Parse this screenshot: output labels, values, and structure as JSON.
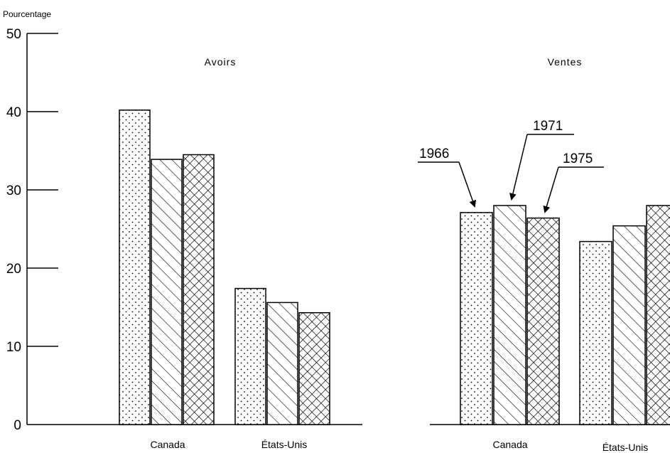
{
  "chart_data": [
    {
      "type": "bar",
      "title": "Avoirs",
      "ylabel": "Pourcentage",
      "ylim": [
        0,
        50
      ],
      "yticks": [
        0,
        10,
        20,
        30,
        40,
        50
      ],
      "categories": [
        "Canada",
        "États-Unis"
      ],
      "series": [
        {
          "name": "1966",
          "values": [
            40.2,
            17.4
          ]
        },
        {
          "name": "1971",
          "values": [
            33.9,
            15.6
          ]
        },
        {
          "name": "1975",
          "values": [
            34.5,
            14.3
          ]
        }
      ],
      "grid": false
    },
    {
      "type": "bar",
      "title": "Ventes",
      "ylim": [
        0,
        50
      ],
      "categories": [
        "Canada",
        "États-Unis"
      ],
      "series": [
        {
          "name": "1966",
          "values": [
            27.1,
            23.4
          ]
        },
        {
          "name": "1971",
          "values": [
            28.0,
            25.4
          ]
        },
        {
          "name": "1975",
          "values": [
            26.4,
            28.0
          ]
        }
      ],
      "grid": false,
      "series_callouts": [
        "1966",
        "1971",
        "1975"
      ]
    }
  ]
}
